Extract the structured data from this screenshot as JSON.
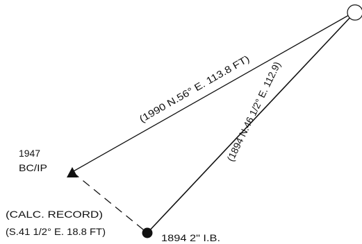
{
  "diagram": {
    "colors": {
      "ink": "#111111",
      "background": "#ffffff"
    },
    "monuments": {
      "bc_ip": {
        "year": "1947",
        "name": "BC/IP",
        "symbol": "triangle"
      },
      "ib": {
        "label": "1894 2\" I.B.",
        "symbol": "filled-circle"
      },
      "corner": {
        "symbol": "open-circle"
      }
    },
    "lines": {
      "record_1990": {
        "label": "(1990  N.56° E. 113.8 FT)",
        "style": "solid"
      },
      "record_1894": {
        "label": "(1894 N.46 1/2° E. 112.9)",
        "style": "solid"
      },
      "calc_record": {
        "line1": "(CALC.     RECORD)",
        "line2": "(S.41 1/2° E. 18.8 FT)",
        "style": "dashed"
      }
    }
  }
}
